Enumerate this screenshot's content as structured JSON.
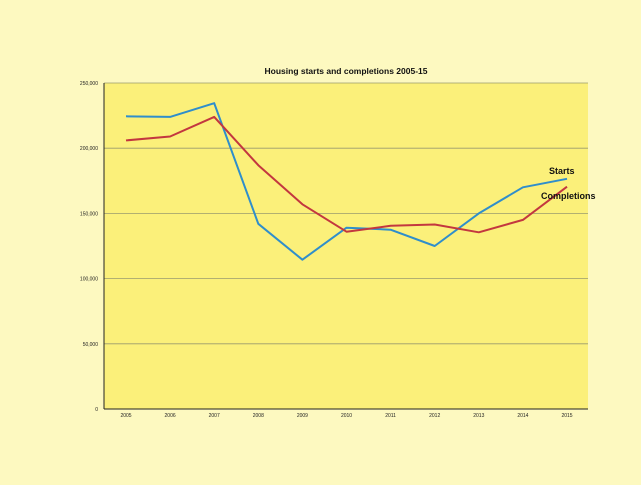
{
  "chart_data": {
    "type": "line",
    "title": "Housing starts and completions 2005-15",
    "categories": [
      "2005",
      "2006",
      "2007",
      "2008",
      "2009",
      "2010",
      "2011",
      "2012",
      "2013",
      "2014",
      "2015"
    ],
    "ylim": [
      0,
      250000
    ],
    "y_ticks": [
      "0",
      "50,000",
      "100,000",
      "150,000",
      "200,000",
      "250,000"
    ],
    "y_tick_values": [
      0,
      50000,
      100000,
      150000,
      200000,
      250000
    ],
    "grid": true,
    "series": [
      {
        "name": "Starts",
        "color": "#2f8ecb",
        "values": [
          224500,
          224000,
          234500,
          142000,
          114500,
          139000,
          137500,
          125000,
          150000,
          170000,
          176500
        ]
      },
      {
        "name": "Completions",
        "color": "#c3373f",
        "values": [
          206000,
          209000,
          224000,
          187000,
          157000,
          136000,
          140500,
          141500,
          135500,
          145000,
          170500
        ]
      }
    ],
    "colors": {
      "page_background": "#fdf9c0",
      "plot_background": "#fbf07a",
      "grid": "#9a9a6e",
      "axis": "#222222"
    }
  }
}
